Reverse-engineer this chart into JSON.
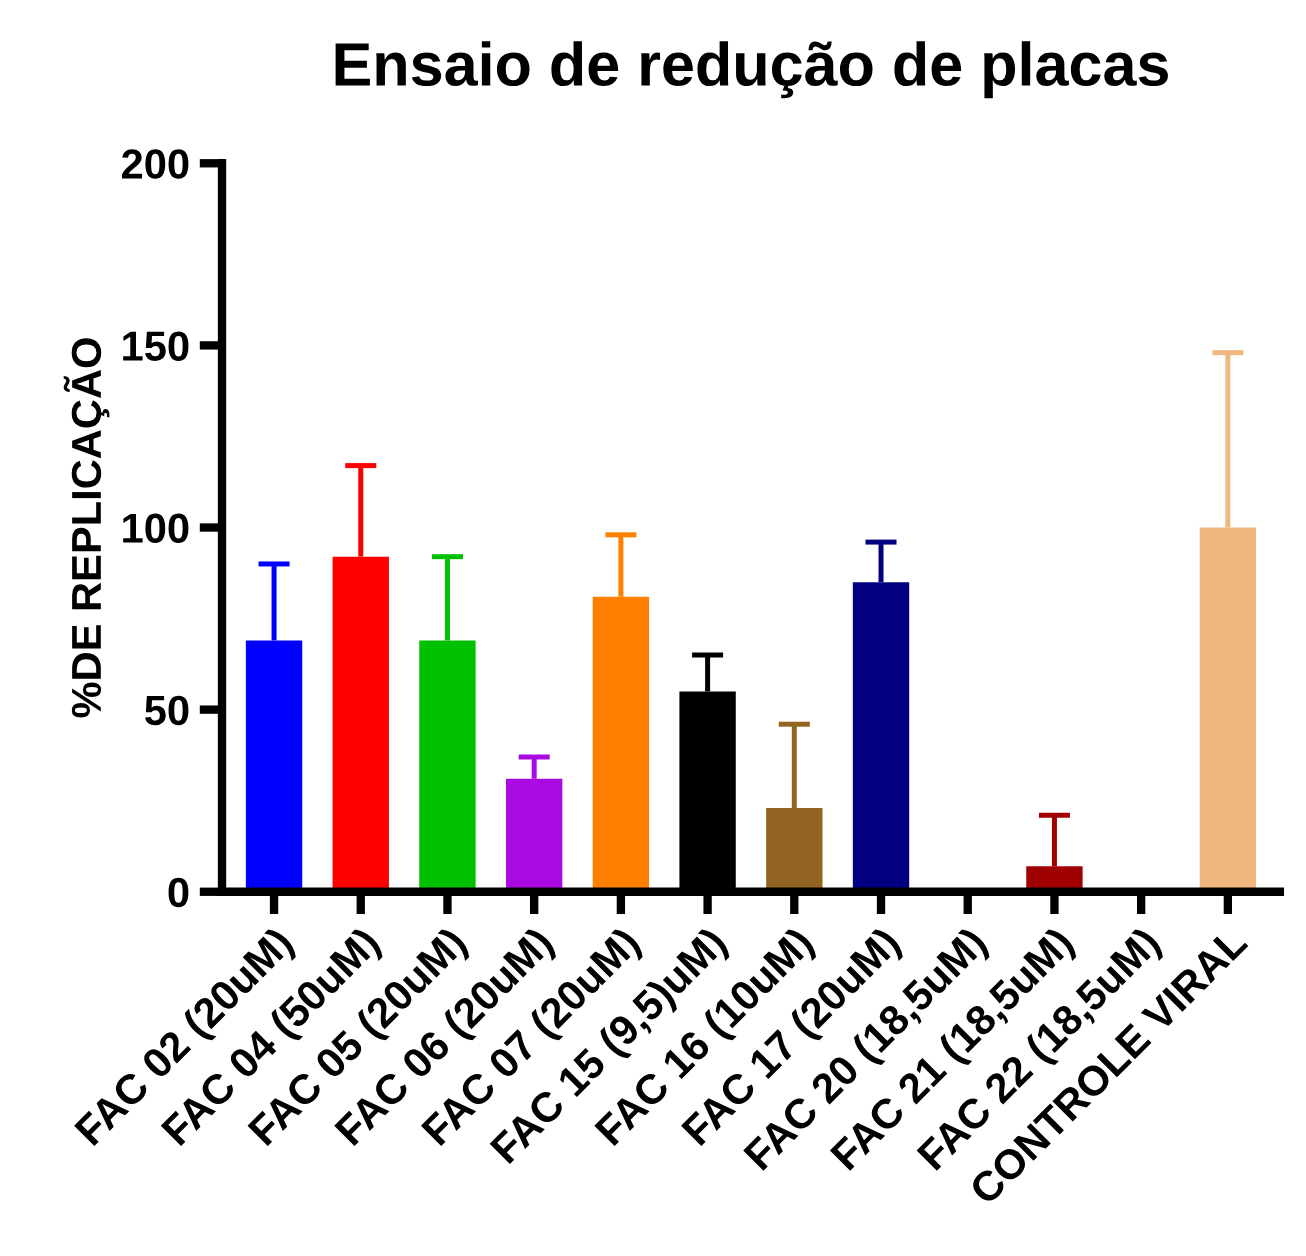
{
  "chart_data": {
    "type": "bar",
    "title": "Ensaio de redução de placas",
    "ylabel": "%DE REPLICAÇÃO",
    "categories": [
      "FAC 02 (20uM)",
      "FAC 04 (50uM)",
      "FAC 05 (20uM)",
      "FAC 06 (20uM)",
      "FAC 07 (20uM)",
      "FAC 15 (9,5)uM)",
      "FAC 16 (10uM)",
      "FAC 17 (20uM)",
      "FAC 20 (18,5uM)",
      "FAC 21 (18,5uM)",
      "FAC 22 (18,5uM)",
      "CONTROLE VIRAL"
    ],
    "values": [
      69,
      92,
      69,
      31,
      81,
      55,
      23,
      85,
      0,
      7,
      0,
      100
    ],
    "errors": [
      [
        69,
        90
      ],
      [
        92,
        117
      ],
      [
        69,
        92
      ],
      [
        31,
        37
      ],
      [
        81,
        98
      ],
      [
        55,
        65
      ],
      [
        23,
        46
      ],
      [
        85,
        96
      ],
      null,
      [
        7,
        21
      ],
      null,
      [
        100,
        148
      ]
    ],
    "colors": [
      "#0000ff",
      "#ff0000",
      "#00c000",
      "#a80ae0",
      "#ff8000",
      "#000000",
      "#936321",
      "#000080",
      "#000000",
      "#a00000",
      "#000000",
      "#f0b77e"
    ],
    "ylim": [
      0,
      200
    ],
    "yticks": [
      0,
      50,
      100,
      150,
      200
    ],
    "grid": false
  }
}
